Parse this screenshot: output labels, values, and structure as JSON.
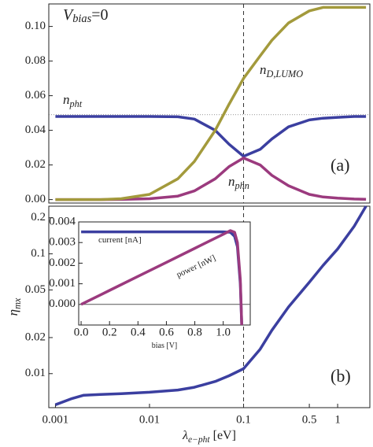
{
  "chart_data": [
    {
      "type": "line",
      "xlog": true,
      "ylog": false,
      "xlim": [
        0.00085,
        2.2
      ],
      "ylim": [
        -0.002,
        0.113
      ],
      "yticks": [
        {
          "value": 0,
          "label": "0.00"
        },
        {
          "value": 0.02,
          "label": "0.02"
        },
        {
          "value": 0.04,
          "label": "0.04"
        },
        {
          "value": 0.06,
          "label": "0.06"
        },
        {
          "value": 0.08,
          "label": "0.08"
        },
        {
          "value": 0.1,
          "label": "0.10"
        }
      ],
      "vline": 0.1,
      "hline": 0.049,
      "annotations": [
        {
          "text": "V",
          "sub": "bias",
          "rest": "=0"
        },
        {
          "text": "(a)"
        }
      ],
      "x": [
        0.001,
        0.0015,
        0.002,
        0.003,
        0.005,
        0.01,
        0.02,
        0.03,
        0.05,
        0.07,
        0.1,
        0.15,
        0.2,
        0.3,
        0.5,
        0.7,
        1,
        1.5,
        2
      ],
      "series": [
        {
          "name": {
            "text": "n",
            "sub": "pht"
          },
          "color": "#3b3fa0",
          "values": [
            0.048,
            0.048,
            0.048,
            0.048,
            0.048,
            0.048,
            0.0478,
            0.0465,
            0.04,
            0.032,
            0.025,
            0.029,
            0.035,
            0.042,
            0.046,
            0.047,
            0.0475,
            0.048,
            0.048
          ]
        },
        {
          "name": {
            "text": "n",
            "sub": "phn"
          },
          "color": "#9b3a7e",
          "values": [
            0,
            0,
            0,
            0,
            0.0001,
            0.0005,
            0.002,
            0.005,
            0.012,
            0.019,
            0.024,
            0.02,
            0.014,
            0.008,
            0.003,
            0.0015,
            0.0008,
            0.0003,
            0.0002
          ]
        },
        {
          "name": {
            "text": "n",
            "sub": "D,LUMO"
          },
          "color": "#a39a3c",
          "values": [
            0,
            0,
            0,
            0,
            0.0005,
            0.003,
            0.012,
            0.022,
            0.04,
            0.055,
            0.07,
            0.083,
            0.092,
            0.102,
            0.109,
            0.111,
            0.111,
            0.111,
            0.111
          ]
        }
      ]
    },
    {
      "type": "line",
      "xlog": true,
      "ylog": true,
      "xlim": [
        0.00085,
        2.2
      ],
      "ylim": [
        0.0052,
        0.25
      ],
      "xticks": [
        0.001,
        0.01,
        0.1,
        0.5,
        1
      ],
      "yticks": [
        0.01,
        0.02,
        0.05,
        0.1,
        0.2
      ],
      "vline": 0.1,
      "xlabel": {
        "text": "λ",
        "sub": "e−pht",
        "rest": " [eV]"
      },
      "ylabel": {
        "text": "η",
        "sub": "mx"
      },
      "annotations": [
        {
          "text": "(b)"
        }
      ],
      "x": [
        0.001,
        0.0015,
        0.002,
        0.003,
        0.005,
        0.01,
        0.02,
        0.03,
        0.05,
        0.07,
        0.1,
        0.15,
        0.2,
        0.3,
        0.5,
        0.7,
        1,
        1.5,
        2
      ],
      "series": [
        {
          "color": "#3b3fa0",
          "values": [
            0.0055,
            0.0062,
            0.0066,
            0.0067,
            0.0068,
            0.007,
            0.0073,
            0.0077,
            0.0086,
            0.0096,
            0.011,
            0.016,
            0.023,
            0.036,
            0.058,
            0.08,
            0.11,
            0.17,
            0.25
          ]
        }
      ]
    },
    {
      "type": "line",
      "xlog": false,
      "ylog": false,
      "xlim": [
        -0.017,
        1.19
      ],
      "ylim": [
        -0.001,
        0.004
      ],
      "xticks": [
        {
          "value": 0,
          "label": "0.0"
        },
        {
          "value": 0.2,
          "label": "0.2"
        },
        {
          "value": 0.4,
          "label": "0.4"
        },
        {
          "value": 0.6,
          "label": "0.6"
        },
        {
          "value": 0.8,
          "label": "0.8"
        },
        {
          "value": 1,
          "label": "1.0"
        }
      ],
      "yticks": [
        {
          "value": 0,
          "label": "0.000"
        },
        {
          "value": 0.001,
          "label": "0.001"
        },
        {
          "value": 0.002,
          "label": "0.002"
        },
        {
          "value": 0.003,
          "label": "0.003"
        },
        {
          "value": 0.004,
          "label": "0.004"
        }
      ],
      "hline": 0,
      "xlabel": {
        "text": "bias [V]"
      },
      "x": [
        0,
        0.2,
        0.4,
        0.6,
        0.8,
        0.9,
        1.0,
        1.05,
        1.08,
        1.1,
        1.12,
        1.13
      ],
      "series": [
        {
          "name": {
            "text": "current [nA]"
          },
          "color": "#3b3fa0",
          "values": [
            0.00352,
            0.00352,
            0.00352,
            0.00352,
            0.00352,
            0.00352,
            0.00352,
            0.0035,
            0.0033,
            0.0028,
            0.001,
            -0.001
          ]
        },
        {
          "name": {
            "text": "power [nW]"
          },
          "color": "#9b3a7e",
          "values": [
            0,
            0.00068,
            0.00136,
            0.00204,
            0.00272,
            0.00306,
            0.0034,
            0.00358,
            0.0035,
            0.003,
            0.0012,
            -0.001
          ]
        }
      ]
    }
  ]
}
